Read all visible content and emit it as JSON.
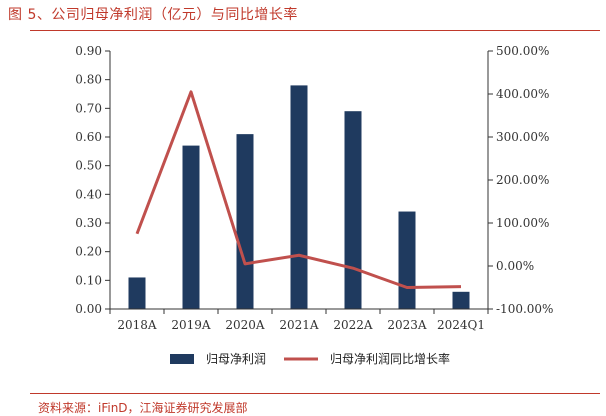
{
  "figure": {
    "title": "图 5、公司归母净利润（亿元）与同比增长率",
    "source": "资料来源：iFinD，江海证券研究发展部"
  },
  "colors": {
    "bar": "#1f3a5f",
    "line": "#c0504d",
    "accent": "#c0392b"
  },
  "chart_data": {
    "type": "bar",
    "categories": [
      "2018A",
      "2019A",
      "2020A",
      "2021A",
      "2022A",
      "2023A",
      "2024Q1"
    ],
    "series": [
      {
        "name": "归母净利润",
        "type": "bar",
        "axis": "left",
        "values": [
          0.11,
          0.57,
          0.61,
          0.78,
          0.69,
          0.34,
          0.06
        ]
      },
      {
        "name": "归母净利润同比增长率",
        "type": "line",
        "axis": "right",
        "values": [
          75,
          405,
          5,
          25,
          -5,
          -50,
          -48
        ]
      }
    ],
    "ylim": [
      0,
      0.9
    ],
    "y_ticks": [
      "0.00",
      "0.10",
      "0.20",
      "0.30",
      "0.40",
      "0.50",
      "0.60",
      "0.70",
      "0.80",
      "0.90"
    ],
    "y2lim": [
      -100,
      500
    ],
    "y2_ticks": [
      "-100.00%",
      "0.00%",
      "100.00%",
      "200.00%",
      "300.00%",
      "400.00%",
      "500.00%"
    ],
    "legend_position": "bottom",
    "grid": false
  }
}
